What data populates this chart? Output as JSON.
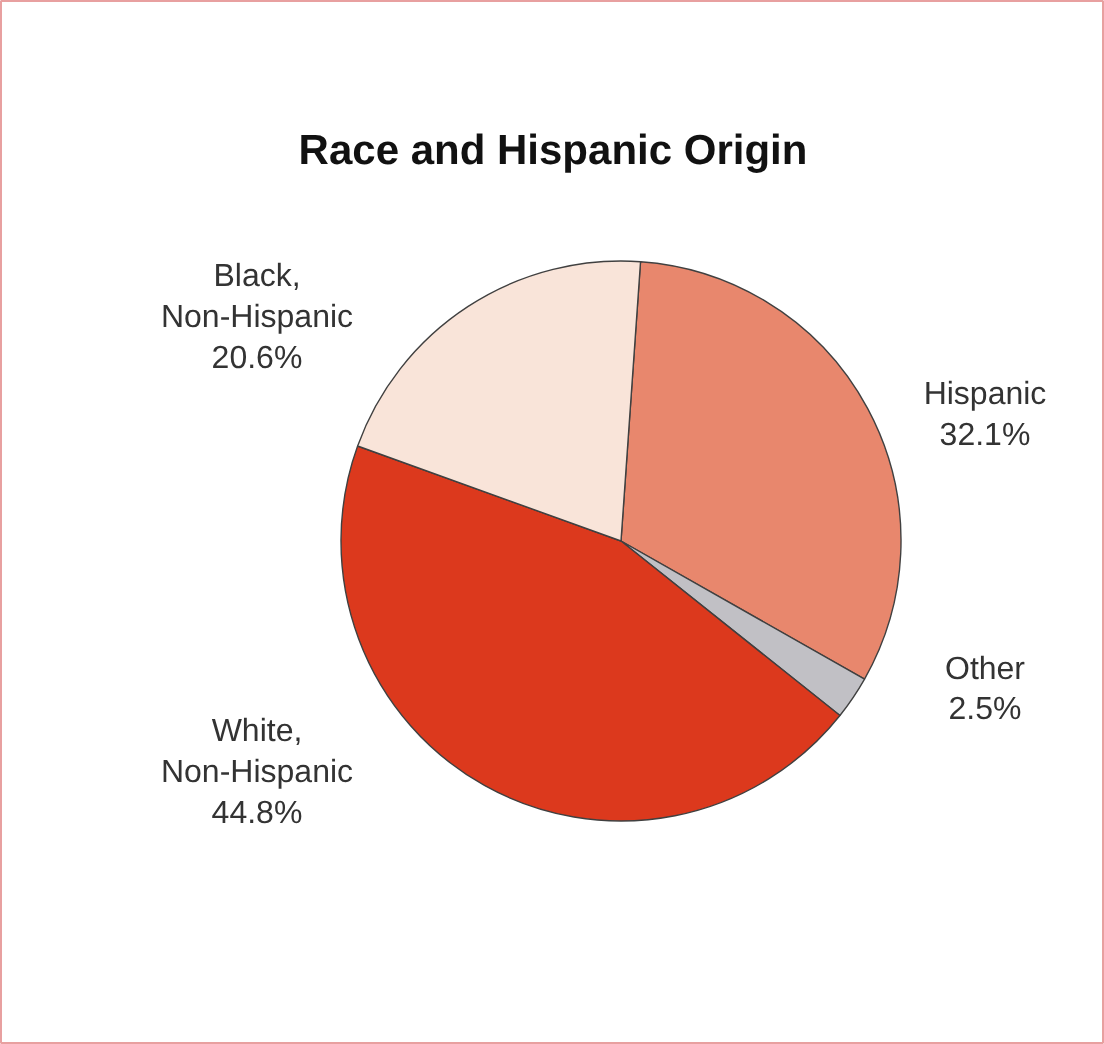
{
  "chart_data": {
    "type": "pie",
    "title": "Race and Hispanic Origin",
    "categories": [
      "Hispanic",
      "Other",
      "White,\nNon-Hispanic",
      "Black,\nNon-Hispanic"
    ],
    "values": [
      32.1,
      2.5,
      44.8,
      20.6
    ],
    "colors": [
      "#e8876d",
      "#c1c0c5",
      "#dc391d",
      "#f9e4d9"
    ],
    "value_labels": [
      "32.1%",
      "2.5%",
      "44.8%",
      "20.6%"
    ],
    "legend": false
  }
}
